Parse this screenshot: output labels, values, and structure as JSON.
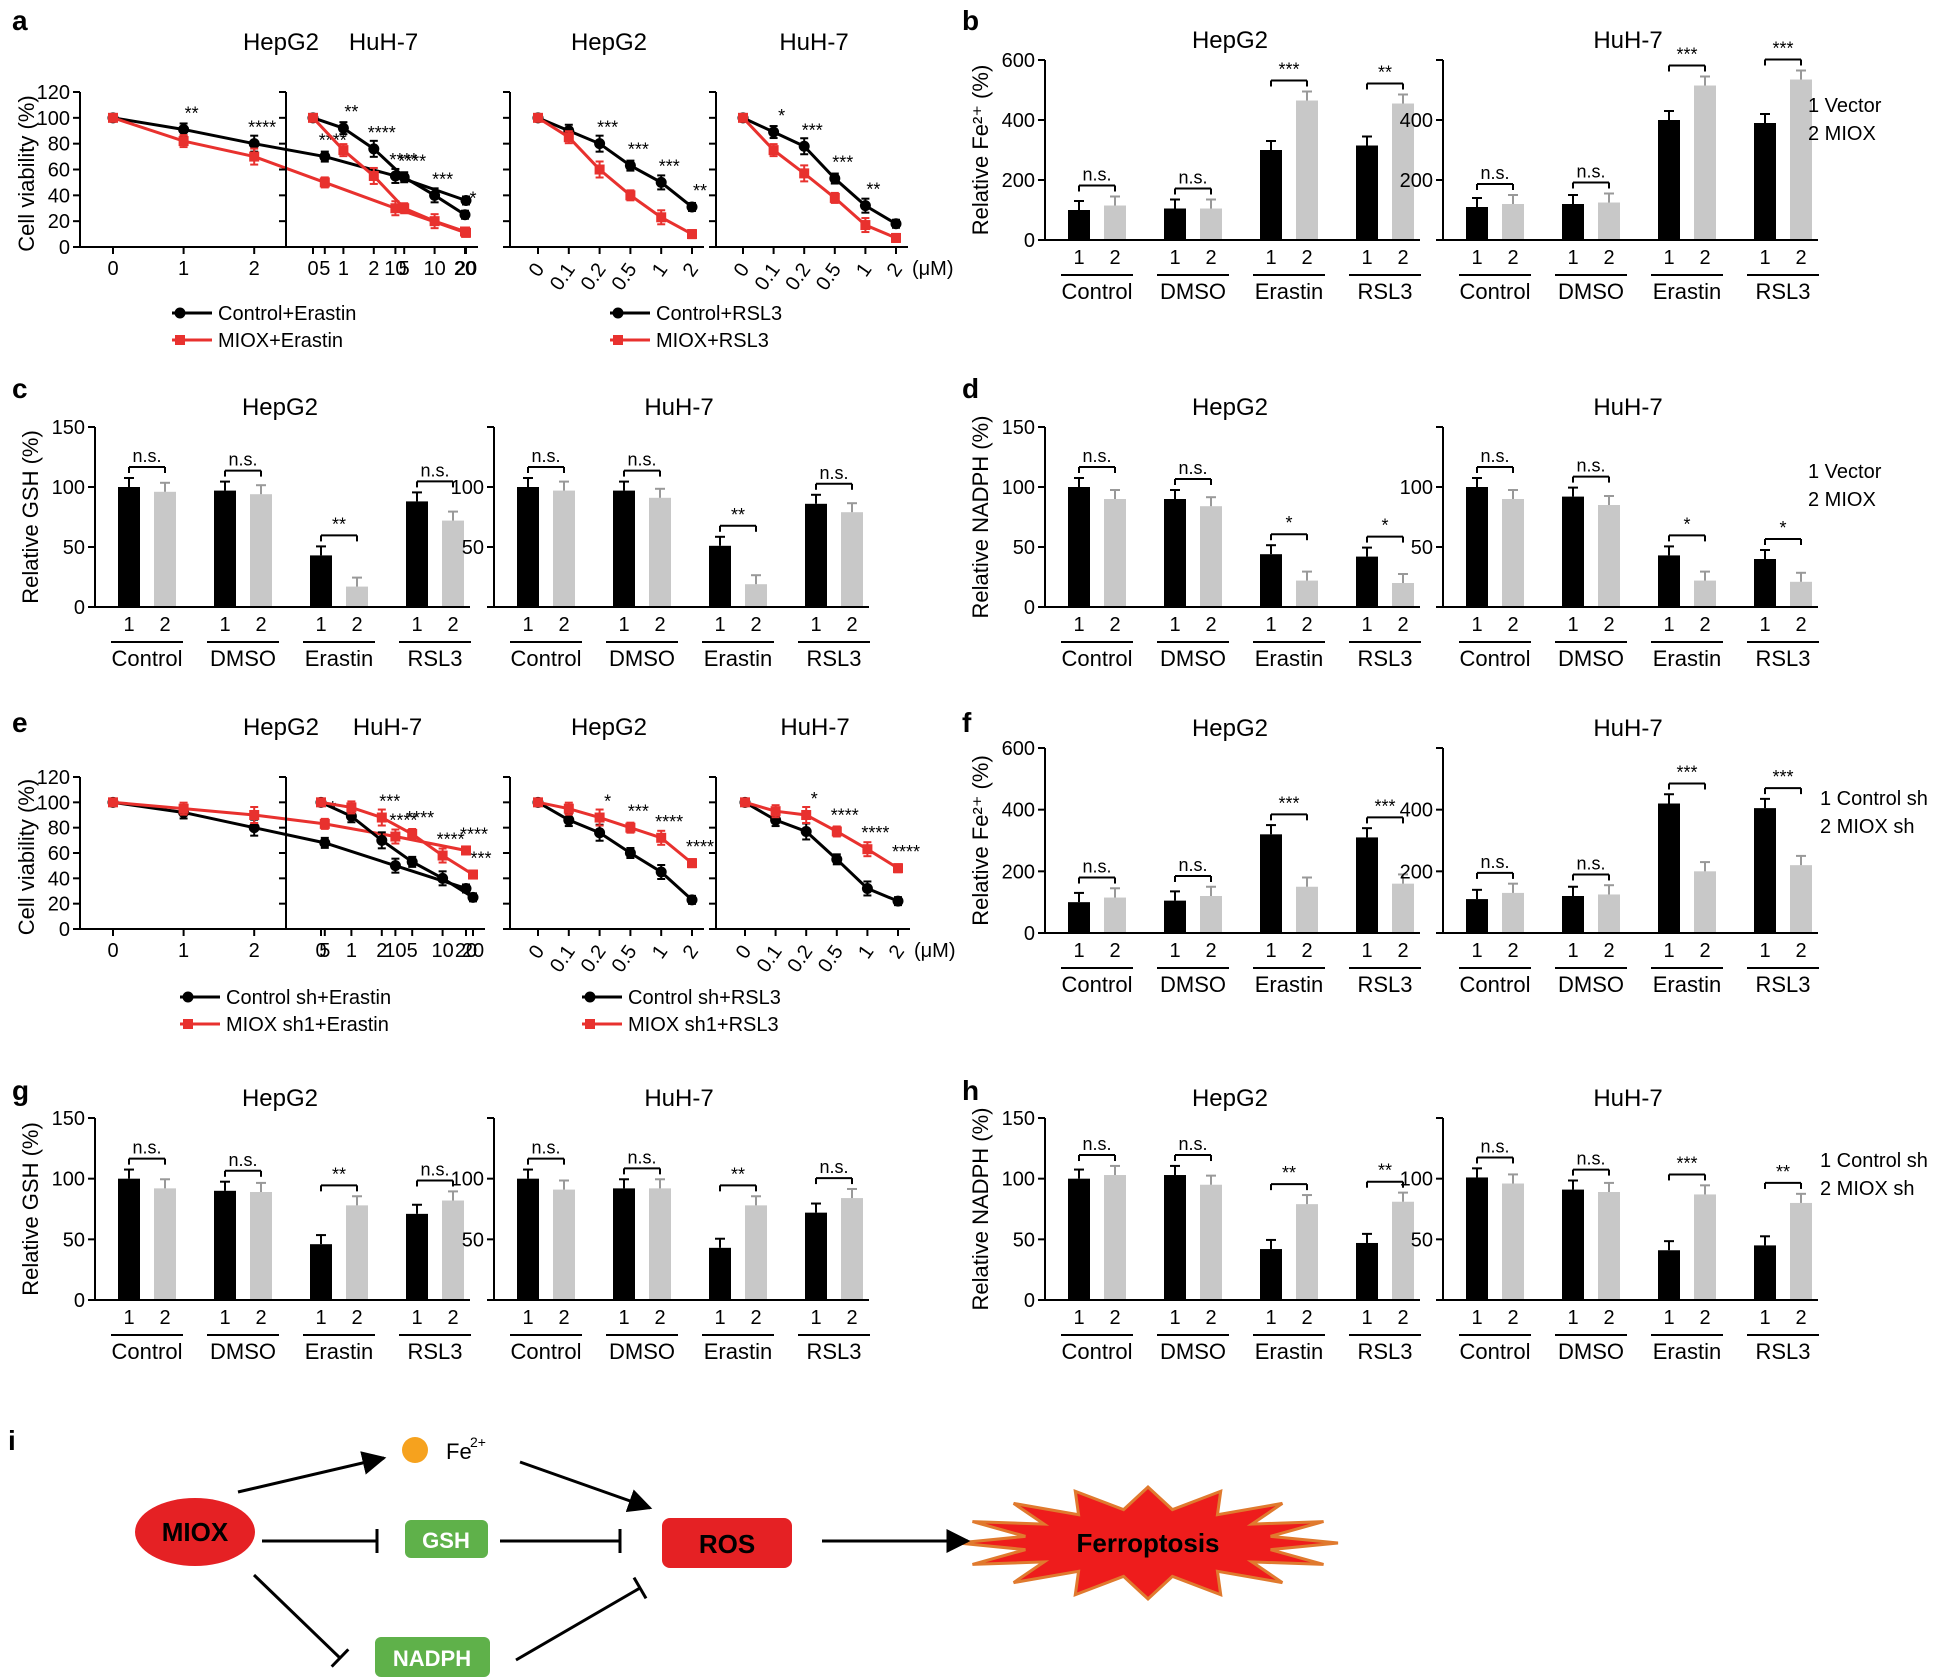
{
  "colors": {
    "black_series": "#000000",
    "red_series": "#e8312e",
    "gray_bar": "#c8c8c8",
    "node_red": "#e52124",
    "node_green": "#5fb14a",
    "star_red": "#ee1c1c",
    "star_outline": "#e07a2e",
    "iron": "#f6a21e"
  },
  "panel_letters": [
    "a",
    "b",
    "c",
    "d",
    "e",
    "f",
    "g",
    "h",
    "i"
  ],
  "chart_data": [
    {
      "panel": "a",
      "cell": "HepG2",
      "type": "line",
      "title": "HepG2",
      "ylabel": "Cell viability (%)",
      "ylim": [
        0,
        120
      ],
      "yticks": [
        "0",
        "20",
        "40",
        "60",
        "80",
        "100",
        "120"
      ],
      "x": [
        "0",
        "1",
        "2",
        "5",
        "10",
        "20"
      ],
      "xunit": "",
      "series": [
        {
          "name": "Control+Erastin",
          "color": "black",
          "values": [
            100,
            91,
            80,
            70,
            55,
            36
          ]
        },
        {
          "name": "MIOX+Erastin",
          "color": "red",
          "values": [
            100,
            82,
            70,
            50,
            30,
            11
          ]
        }
      ],
      "sig": [
        "",
        "**",
        "****",
        "****",
        "****",
        ""
      ]
    },
    {
      "panel": "a",
      "cell": "HuH-7",
      "type": "line",
      "title": "HuH-7",
      "ylabel": "",
      "ylim": [
        0,
        120
      ],
      "yticks": [],
      "x": [
        "0",
        "1",
        "2",
        "5",
        "10",
        "20"
      ],
      "xunit": "",
      "series": [
        {
          "name": "Control+Erastin",
          "color": "black",
          "values": [
            100,
            92,
            76,
            54,
            40,
            25
          ]
        },
        {
          "name": "MIOX+Erastin",
          "color": "red",
          "values": [
            100,
            75,
            55,
            30,
            20,
            12
          ]
        }
      ],
      "sig": [
        "",
        "**",
        "****",
        "****",
        "***",
        "*"
      ]
    },
    {
      "panel": "a",
      "cell": "HepG2",
      "type": "line",
      "title": "HepG2",
      "ylabel": "",
      "ylim": [
        0,
        120
      ],
      "yticks": [],
      "x": [
        "0",
        "0.1",
        "0.2",
        "0.5",
        "1",
        "2"
      ],
      "xunit": "",
      "series": [
        {
          "name": "Control+RSL3",
          "color": "black",
          "values": [
            100,
            90,
            80,
            63,
            50,
            31
          ]
        },
        {
          "name": "MIOX+RSL3",
          "color": "red",
          "values": [
            100,
            85,
            60,
            40,
            23,
            10
          ]
        }
      ],
      "sig": [
        "",
        "",
        "***",
        "***",
        "***",
        "**"
      ]
    },
    {
      "panel": "a",
      "cell": "HuH-7",
      "type": "line",
      "title": "HuH-7",
      "ylabel": "",
      "ylim": [
        0,
        120
      ],
      "yticks": [],
      "x": [
        "0",
        "0.1",
        "0.2",
        "0.5",
        "1",
        "2"
      ],
      "xunit": "(μM)",
      "series": [
        {
          "name": "Control+RSL3",
          "color": "black",
          "values": [
            100,
            89,
            78,
            53,
            32,
            18
          ]
        },
        {
          "name": "MIOX+RSL3",
          "color": "red",
          "values": [
            100,
            75,
            57,
            38,
            17,
            7
          ]
        }
      ],
      "sig": [
        "",
        "*",
        "***",
        "***",
        "**",
        ""
      ]
    },
    {
      "panel": "e",
      "cell": "HepG2",
      "type": "line",
      "title": "HepG2",
      "ylabel": "Cell viability (%)",
      "ylim": [
        0,
        120
      ],
      "yticks": [
        "0",
        "20",
        "40",
        "60",
        "80",
        "100",
        "120"
      ],
      "x": [
        "0",
        "1",
        "2",
        "5",
        "10",
        "20"
      ],
      "xunit": "",
      "series": [
        {
          "name": "Control sh+Erastin",
          "color": "black",
          "values": [
            100,
            92,
            80,
            68,
            50,
            32
          ]
        },
        {
          "name": "MIOX sh1+Erastin",
          "color": "red",
          "values": [
            100,
            95,
            90,
            83,
            73,
            62
          ]
        }
      ],
      "sig": [
        "",
        "",
        "",
        "*",
        "****",
        "****"
      ]
    },
    {
      "panel": "e",
      "cell": "HuH-7",
      "type": "line",
      "title": "HuH-7",
      "ylabel": "",
      "ylim": [
        0,
        120
      ],
      "yticks": [],
      "x": [
        "0",
        "1",
        "2",
        "5",
        "10",
        "20"
      ],
      "xunit": "",
      "series": [
        {
          "name": "Control sh+Erastin",
          "color": "black",
          "values": [
            100,
            89,
            70,
            53,
            40,
            25
          ]
        },
        {
          "name": "MIOX sh1+Erastin",
          "color": "red",
          "values": [
            100,
            96,
            88,
            75,
            58,
            43
          ]
        }
      ],
      "sig": [
        "",
        "",
        "***",
        "****",
        "****",
        "***"
      ]
    },
    {
      "panel": "e",
      "cell": "HepG2",
      "type": "line",
      "title": "HepG2",
      "ylabel": "",
      "ylim": [
        0,
        120
      ],
      "yticks": [],
      "x": [
        "0",
        "0.1",
        "0.2",
        "0.5",
        "1",
        "2"
      ],
      "xunit": "",
      "series": [
        {
          "name": "Control sh+RSL3",
          "color": "black",
          "values": [
            100,
            86,
            76,
            60,
            45,
            23
          ]
        },
        {
          "name": "MIOX sh1+RSL3",
          "color": "red",
          "values": [
            100,
            95,
            88,
            80,
            72,
            52
          ]
        }
      ],
      "sig": [
        "",
        "",
        "*",
        "***",
        "****",
        "****"
      ]
    },
    {
      "panel": "e",
      "cell": "HuH-7",
      "type": "line",
      "title": "HuH-7",
      "ylabel": "",
      "ylim": [
        0,
        120
      ],
      "yticks": [],
      "x": [
        "0",
        "0.1",
        "0.2",
        "0.5",
        "1",
        "2"
      ],
      "xunit": "(μM)",
      "series": [
        {
          "name": "Control sh+RSL3",
          "color": "black",
          "values": [
            100,
            86,
            77,
            55,
            32,
            22
          ]
        },
        {
          "name": "MIOX sh1+RSL3",
          "color": "red",
          "values": [
            100,
            93,
            90,
            77,
            63,
            48
          ]
        }
      ],
      "sig": [
        "",
        "",
        "*",
        "****",
        "****",
        "****"
      ]
    },
    {
      "panel": "b",
      "cell": "HepG2",
      "type": "bar",
      "title": "HepG2",
      "ylabel": "Relative Fe²⁺ (%)",
      "ylim": [
        0,
        600
      ],
      "yticks": [
        "0",
        "200",
        "400",
        "600"
      ],
      "groups": [
        "Control",
        "DMSO",
        "Erastin",
        "RSL3"
      ],
      "series": [
        {
          "name": "Vector",
          "values": [
            100,
            105,
            300,
            315
          ]
        },
        {
          "name": "MIOX",
          "values": [
            115,
            105,
            465,
            455
          ]
        }
      ],
      "sig": [
        "n.s.",
        "n.s.",
        "***",
        "**"
      ]
    },
    {
      "panel": "b",
      "cell": "HuH-7",
      "type": "bar",
      "title": "HuH-7",
      "ylabel": "",
      "ylim": [
        0,
        600
      ],
      "yticks": [
        "",
        "200",
        "400",
        ""
      ],
      "groups": [
        "Control",
        "DMSO",
        "Erastin",
        "RSL3"
      ],
      "series": [
        {
          "name": "Vector",
          "values": [
            110,
            120,
            400,
            390
          ]
        },
        {
          "name": "MIOX",
          "values": [
            120,
            125,
            515,
            535
          ]
        }
      ],
      "sig": [
        "n.s.",
        "n.s.",
        "***",
        "***"
      ]
    },
    {
      "panel": "c",
      "cell": "HepG2",
      "type": "bar",
      "title": "HepG2",
      "ylabel": "Relative GSH (%)",
      "ylim": [
        0,
        150
      ],
      "yticks": [
        "0",
        "50",
        "100",
        "150"
      ],
      "groups": [
        "Control",
        "DMSO",
        "Erastin",
        "RSL3"
      ],
      "series": [
        {
          "name": "Vector",
          "values": [
            100,
            97,
            43,
            88
          ]
        },
        {
          "name": "MIOX",
          "values": [
            96,
            94,
            17,
            72
          ]
        }
      ],
      "sig": [
        "n.s.",
        "n.s.",
        "**",
        "n.s."
      ]
    },
    {
      "panel": "c",
      "cell": "HuH-7",
      "type": "bar",
      "title": "HuH-7",
      "ylabel": "",
      "ylim": [
        0,
        150
      ],
      "yticks": [
        "",
        "50",
        "100",
        ""
      ],
      "groups": [
        "Control",
        "DMSO",
        "Erastin",
        "RSL3"
      ],
      "series": [
        {
          "name": "Vector",
          "values": [
            100,
            97,
            51,
            86
          ]
        },
        {
          "name": "MIOX",
          "values": [
            97,
            91,
            19,
            79
          ]
        }
      ],
      "sig": [
        "n.s.",
        "n.s.",
        "**",
        "n.s."
      ]
    },
    {
      "panel": "d",
      "cell": "HepG2",
      "type": "bar",
      "title": "HepG2",
      "ylabel": "Relative NADPH (%)",
      "ylim": [
        0,
        150
      ],
      "yticks": [
        "0",
        "50",
        "100",
        "150"
      ],
      "groups": [
        "Control",
        "DMSO",
        "Erastin",
        "RSL3"
      ],
      "series": [
        {
          "name": "Vector",
          "values": [
            100,
            90,
            44,
            42
          ]
        },
        {
          "name": "MIOX",
          "values": [
            90,
            84,
            22,
            20
          ]
        }
      ],
      "sig": [
        "n.s.",
        "n.s.",
        "*",
        "*"
      ]
    },
    {
      "panel": "d",
      "cell": "HuH-7",
      "type": "bar",
      "title": "HuH-7",
      "ylabel": "",
      "ylim": [
        0,
        150
      ],
      "yticks": [
        "",
        "50",
        "100",
        ""
      ],
      "groups": [
        "Control",
        "DMSO",
        "Erastin",
        "RSL3"
      ],
      "series": [
        {
          "name": "Vector",
          "values": [
            100,
            92,
            43,
            40
          ]
        },
        {
          "name": "MIOX",
          "values": [
            90,
            85,
            22,
            21
          ]
        }
      ],
      "sig": [
        "n.s.",
        "n.s.",
        "*",
        "*"
      ]
    },
    {
      "panel": "f",
      "cell": "HepG2",
      "type": "bar",
      "title": "HepG2",
      "ylabel": "Relative Fe²⁺ (%)",
      "ylim": [
        0,
        600
      ],
      "yticks": [
        "0",
        "200",
        "400",
        "600"
      ],
      "groups": [
        "Control",
        "DMSO",
        "Erastin",
        "RSL3"
      ],
      "series": [
        {
          "name": "Control sh",
          "values": [
            100,
            105,
            320,
            310
          ]
        },
        {
          "name": "MIOX sh",
          "values": [
            115,
            120,
            150,
            160
          ]
        }
      ],
      "sig": [
        "n.s.",
        "n.s.",
        "***",
        "***"
      ]
    },
    {
      "panel": "f",
      "cell": "HuH-7",
      "type": "bar",
      "title": "HuH-7",
      "ylabel": "",
      "ylim": [
        0,
        600
      ],
      "yticks": [
        "",
        "200",
        "400",
        ""
      ],
      "groups": [
        "Control",
        "DMSO",
        "Erastin",
        "RSL3"
      ],
      "series": [
        {
          "name": "Control sh",
          "values": [
            110,
            120,
            420,
            405
          ]
        },
        {
          "name": "MIOX sh",
          "values": [
            130,
            125,
            200,
            220
          ]
        }
      ],
      "sig": [
        "n.s.",
        "n.s.",
        "***",
        "***"
      ]
    },
    {
      "panel": "g",
      "cell": "HepG2",
      "type": "bar",
      "title": "HepG2",
      "ylabel": "Relative GSH (%)",
      "ylim": [
        0,
        150
      ],
      "yticks": [
        "0",
        "50",
        "100",
        "150"
      ],
      "groups": [
        "Control",
        "DMSO",
        "Erastin",
        "RSL3"
      ],
      "series": [
        {
          "name": "Control sh",
          "values": [
            100,
            90,
            46,
            71
          ]
        },
        {
          "name": "MIOX sh",
          "values": [
            92,
            89,
            78,
            82
          ]
        }
      ],
      "sig": [
        "n.s.",
        "n.s.",
        "**",
        "n.s."
      ]
    },
    {
      "panel": "g",
      "cell": "HuH-7",
      "type": "bar",
      "title": "HuH-7",
      "ylabel": "",
      "ylim": [
        0,
        150
      ],
      "yticks": [
        "",
        "50",
        "100",
        ""
      ],
      "groups": [
        "Control",
        "DMSO",
        "Erastin",
        "RSL3"
      ],
      "series": [
        {
          "name": "Control sh",
          "values": [
            100,
            92,
            43,
            72
          ]
        },
        {
          "name": "MIOX sh",
          "values": [
            91,
            92,
            78,
            84
          ]
        }
      ],
      "sig": [
        "n.s.",
        "n.s.",
        "**",
        "n.s."
      ]
    },
    {
      "panel": "h",
      "cell": "HepG2",
      "type": "bar",
      "title": "HepG2",
      "ylabel": "Relative NADPH (%)",
      "ylim": [
        0,
        150
      ],
      "yticks": [
        "0",
        "50",
        "100",
        "150"
      ],
      "groups": [
        "Control",
        "DMSO",
        "Erastin",
        "RSL3"
      ],
      "series": [
        {
          "name": "Control sh",
          "values": [
            100,
            103,
            42,
            47
          ]
        },
        {
          "name": "MIOX sh",
          "values": [
            103,
            95,
            79,
            81
          ]
        }
      ],
      "sig": [
        "n.s.",
        "n.s.",
        "**",
        "**"
      ]
    },
    {
      "panel": "h",
      "cell": "HuH-7",
      "type": "bar",
      "title": "HuH-7",
      "ylabel": "",
      "ylim": [
        0,
        150
      ],
      "yticks": [
        "",
        "50",
        "100",
        ""
      ],
      "groups": [
        "Control",
        "DMSO",
        "Erastin",
        "RSL3"
      ],
      "series": [
        {
          "name": "Control sh",
          "values": [
            101,
            91,
            41,
            45
          ]
        },
        {
          "name": "MIOX sh",
          "values": [
            96,
            89,
            87,
            80
          ]
        }
      ],
      "sig": [
        "n.s.",
        "n.s.",
        "***",
        "**"
      ]
    }
  ],
  "bar_legends": {
    "bd": [
      "1 Vector",
      "2 MIOX"
    ],
    "fh": [
      "1 Control sh",
      "2 MIOX sh"
    ]
  },
  "bar_sub_labels": [
    "1",
    "2"
  ],
  "diagram": {
    "miox": "MIOX",
    "fe": "Fe",
    "fe_sup": "2+",
    "gsh": "GSH",
    "nadph": "NADPH",
    "ros": "ROS",
    "ferroptosis": "Ferroptosis"
  }
}
